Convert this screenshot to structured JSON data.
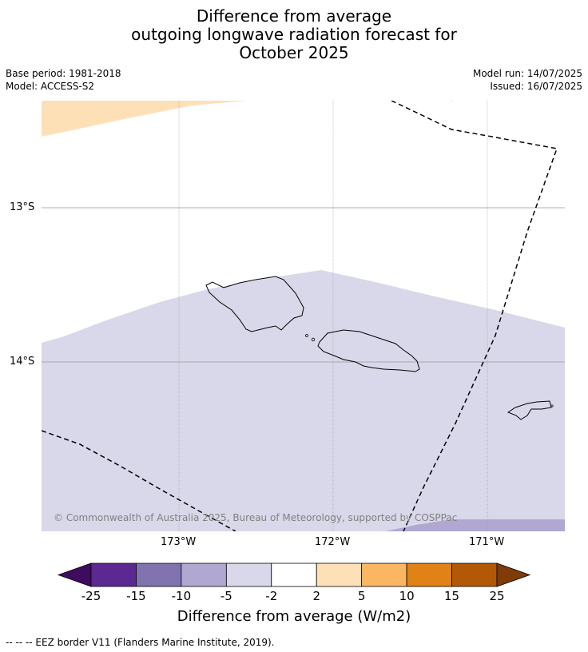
{
  "title": {
    "line1": "Difference from average",
    "line2": "outgoing longwave radiation forecast for",
    "line3": "October 2025"
  },
  "meta": {
    "base_period": "Base period: 1981-2018",
    "model": "Model: ACCESS-S2",
    "model_run": "Model run: 14/07/2025",
    "issued": "Issued: 16/07/2025"
  },
  "map": {
    "lat_labels": [
      "13°S",
      "14°S"
    ],
    "lon_labels": [
      "173°W",
      "172°W",
      "171°W"
    ],
    "copyright": "© Commonwealth of Australia 2025, Bureau of Meteorology, supported by COSPPac",
    "colors": {
      "positive_light": "#fde0b6",
      "negative_light": "#d8d8ea",
      "negative_mid": "#b1a8d2",
      "coast": "#000000",
      "grid": "#999999"
    }
  },
  "colorbar": {
    "labels": [
      "-25",
      "-15",
      "-10",
      "-5",
      "-2",
      "2",
      "5",
      "10",
      "15",
      "25"
    ],
    "colors": [
      "#3f0b5f",
      "#5c2891",
      "#8173b0",
      "#b1a8d2",
      "#d8d8ea",
      "#ffffff",
      "#fde0b6",
      "#fbb663",
      "#e08215",
      "#b35807",
      "#7f3b08"
    ],
    "title": "Difference from average (W/m2)"
  },
  "legend_note": "--  --  -- EEZ border V11 (Flanders Marine Institute, 2019)."
}
